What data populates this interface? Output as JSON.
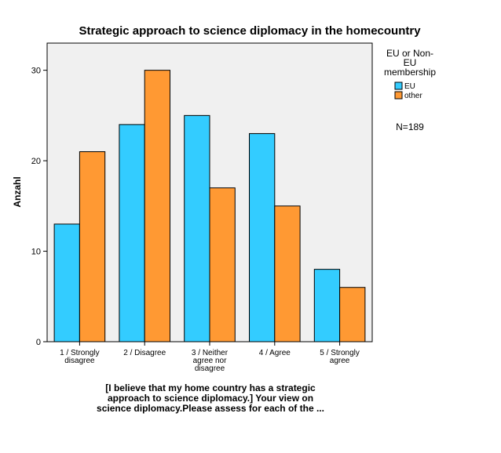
{
  "chart_data": {
    "type": "bar",
    "title": "Strategic approach to science diplomacy in the homecountry",
    "ylabel": "Anzahl",
    "xlabel_lines": [
      "[I believe that my home country has a strategic",
      "approach to science diplomacy.] Your view on",
      "science diplomacy.Please assess for each of the ..."
    ],
    "categories": [
      [
        "1 / Strongly",
        "disagree"
      ],
      [
        "2 / Disagree"
      ],
      [
        "3 / Neither",
        "agree nor",
        "disagree"
      ],
      [
        "4 / Agree"
      ],
      [
        "5 / Strongly",
        "agree"
      ]
    ],
    "series": [
      {
        "name": "EU",
        "color": "#33ccff",
        "values": [
          13,
          24,
          25,
          23,
          8
        ]
      },
      {
        "name": "other",
        "color": "#ff9933",
        "values": [
          21,
          30,
          17,
          15,
          6
        ]
      }
    ],
    "ylim": [
      0,
      33
    ],
    "yticks": [
      0,
      10,
      20,
      30
    ],
    "grid": false,
    "legend": {
      "title_lines": [
        "EU or Non-",
        "EU",
        "membership"
      ],
      "placement": "right"
    },
    "annotation": "N=189",
    "plot_background": "#f0f0f0"
  }
}
